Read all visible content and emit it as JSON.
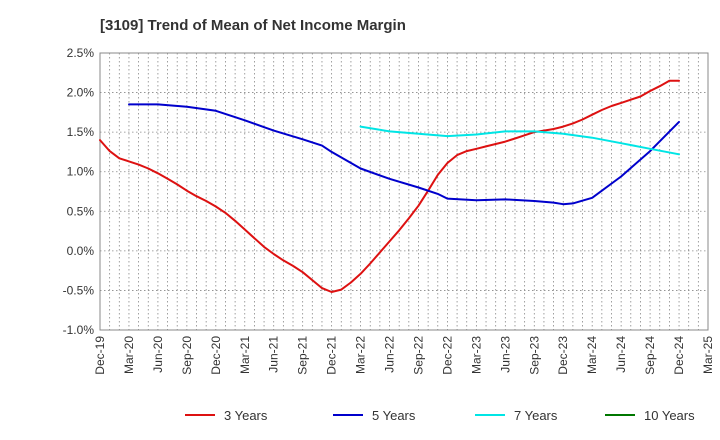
{
  "chart_data": {
    "type": "line",
    "title": "[3109]  Trend of Mean of Net Income Margin",
    "xlabel": "",
    "ylabel": "",
    "x_tick_labels": [
      "Dec-19",
      "Mar-20",
      "Jun-20",
      "Sep-20",
      "Dec-20",
      "Mar-21",
      "Jun-21",
      "Sep-21",
      "Dec-21",
      "Mar-22",
      "Jun-22",
      "Sep-22",
      "Dec-22",
      "Mar-23",
      "Jun-23",
      "Sep-23",
      "Dec-23",
      "Mar-24",
      "Jun-24",
      "Sep-24",
      "Dec-24",
      "Mar-25"
    ],
    "y_tick_labels": [
      "2.5%",
      "2.0%",
      "1.5%",
      "1.0%",
      "0.5%",
      "0.0%",
      "-0.5%",
      "-1.0%"
    ],
    "y_ticks": [
      2.5,
      2.0,
      1.5,
      1.0,
      0.5,
      0.0,
      -0.5,
      -1.0
    ],
    "ylim": [
      -1.0,
      2.5
    ],
    "grid": true,
    "legend_position": "bottom",
    "series": [
      {
        "name": "3 Years",
        "color": "#dd1111",
        "x": [
          "Dec-19",
          "Jan-20",
          "Feb-20",
          "Mar-20",
          "Apr-20",
          "May-20",
          "Jun-20",
          "Jul-20",
          "Aug-20",
          "Sep-20",
          "Oct-20",
          "Nov-20",
          "Dec-20",
          "Jan-21",
          "Feb-21",
          "Mar-21",
          "Apr-21",
          "May-21",
          "Jun-21",
          "Jul-21",
          "Aug-21",
          "Sep-21",
          "Oct-21",
          "Nov-21",
          "Dec-21",
          "Jan-22",
          "Feb-22",
          "Mar-22",
          "Apr-22",
          "May-22",
          "Jun-22",
          "Jul-22",
          "Aug-22",
          "Sep-22",
          "Oct-22",
          "Nov-22",
          "Dec-22",
          "Jan-23",
          "Feb-23",
          "Mar-23",
          "Apr-23",
          "May-23",
          "Jun-23",
          "Jul-23",
          "Aug-23",
          "Sep-23",
          "Oct-23",
          "Nov-23",
          "Dec-23",
          "Jan-24",
          "Feb-24",
          "Mar-24",
          "Apr-24",
          "May-24",
          "Jun-24",
          "Jul-24",
          "Aug-24",
          "Sep-24",
          "Oct-24",
          "Nov-24",
          "Dec-24"
        ],
        "values": [
          1.4,
          1.26,
          1.17,
          1.13,
          1.09,
          1.04,
          0.98,
          0.91,
          0.84,
          0.76,
          0.69,
          0.63,
          0.56,
          0.48,
          0.38,
          0.27,
          0.16,
          0.05,
          -0.04,
          -0.12,
          -0.19,
          -0.27,
          -0.37,
          -0.47,
          -0.52,
          -0.49,
          -0.4,
          -0.29,
          -0.16,
          -0.02,
          0.12,
          0.26,
          0.41,
          0.57,
          0.76,
          0.96,
          1.11,
          1.21,
          1.26,
          1.29,
          1.32,
          1.35,
          1.38,
          1.42,
          1.46,
          1.5,
          1.52,
          1.54,
          1.57,
          1.61,
          1.66,
          1.72,
          1.78,
          1.83,
          1.87,
          1.91,
          1.95,
          2.02,
          2.08,
          2.15,
          2.15
        ]
      },
      {
        "name": "5 Years",
        "color": "#0000cc",
        "x": [
          "Mar-20",
          "Jun-20",
          "Sep-20",
          "Dec-20",
          "Mar-21",
          "Jun-21",
          "Sep-21",
          "Nov-21",
          "Dec-21",
          "Mar-22",
          "Jun-22",
          "Sep-22",
          "Nov-22",
          "Dec-22",
          "Mar-23",
          "Jun-23",
          "Sep-23",
          "Nov-23",
          "Dec-23",
          "Jan-24",
          "Mar-24",
          "Jun-24",
          "Sep-24",
          "Dec-24"
        ],
        "values": [
          1.85,
          1.85,
          1.82,
          1.77,
          1.65,
          1.52,
          1.41,
          1.33,
          1.25,
          1.04,
          0.91,
          0.8,
          0.72,
          0.66,
          0.64,
          0.65,
          0.63,
          0.61,
          0.59,
          0.6,
          0.67,
          0.94,
          1.26,
          1.63
        ]
      },
      {
        "name": "7 Years",
        "color": "#00e5e5",
        "x": [
          "Mar-22",
          "Jun-22",
          "Sep-22",
          "Dec-22",
          "Mar-23",
          "Jun-23",
          "Sep-23",
          "Dec-23",
          "Mar-24",
          "Jun-24",
          "Sep-24",
          "Dec-24"
        ],
        "values": [
          1.57,
          1.51,
          1.48,
          1.45,
          1.47,
          1.51,
          1.51,
          1.48,
          1.43,
          1.36,
          1.29,
          1.22
        ]
      },
      {
        "name": "10 Years",
        "color": "#007700",
        "x": [],
        "values": []
      }
    ]
  }
}
